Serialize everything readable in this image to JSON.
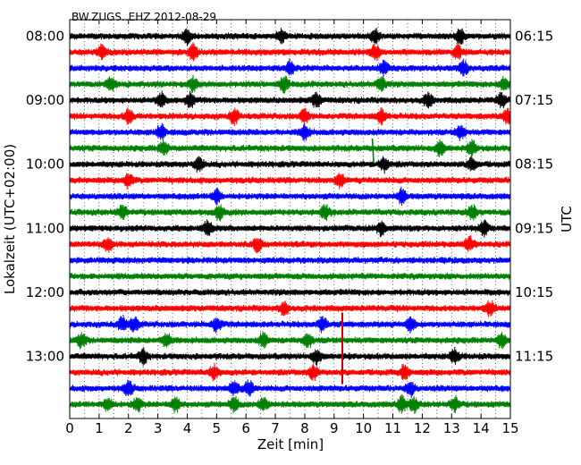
{
  "chart_data": {
    "type": "line",
    "title": "BW.ZUGS..EHZ 2012-08-29",
    "xlabel": "Zeit  [min]",
    "ylabel_left": "Lokalzeit (UTC+02:00)",
    "ylabel_right": "UTC",
    "xlim": [
      0,
      15
    ],
    "x_ticks": [
      "0",
      "1",
      "2",
      "3",
      "4",
      "5",
      "6",
      "7",
      "8",
      "9",
      "10",
      "11",
      "12",
      "13",
      "14",
      "15"
    ],
    "left_time_labels": [
      "08:00",
      "09:00",
      "10:00",
      "11:00",
      "12:00",
      "13:00"
    ],
    "right_time_labels": [
      "06:15",
      "07:15",
      "08:15",
      "09:15",
      "10:15",
      "11:15"
    ],
    "trace_count": 24,
    "traces_per_hour": 4,
    "trace_colors": [
      "#000000",
      "#ff0000",
      "#0000ff",
      "#008000"
    ],
    "grid": true,
    "grid_interval_min": 0.5,
    "events": [
      {
        "trace": 7,
        "minute": 10.3,
        "color": "#008000",
        "kind": "spike-up"
      },
      {
        "trace": 19,
        "minute": 9.28,
        "color": "#cc0000",
        "kind": "long-spike"
      }
    ],
    "bursts": [
      {
        "trace": 0,
        "minute": 4.0
      },
      {
        "trace": 0,
        "minute": 7.2
      },
      {
        "trace": 0,
        "minute": 10.4
      },
      {
        "trace": 0,
        "minute": 13.3
      },
      {
        "trace": 1,
        "minute": 1.1
      },
      {
        "trace": 1,
        "minute": 4.2
      },
      {
        "trace": 1,
        "minute": 10.4
      },
      {
        "trace": 1,
        "minute": 13.2
      },
      {
        "trace": 2,
        "minute": 7.5
      },
      {
        "trace": 2,
        "minute": 10.7
      },
      {
        "trace": 2,
        "minute": 13.4
      },
      {
        "trace": 3,
        "minute": 1.4
      },
      {
        "trace": 3,
        "minute": 4.2
      },
      {
        "trace": 3,
        "minute": 7.3
      },
      {
        "trace": 3,
        "minute": 10.6
      },
      {
        "trace": 3,
        "minute": 14.8
      },
      {
        "trace": 4,
        "minute": 3.1
      },
      {
        "trace": 4,
        "minute": 4.1
      },
      {
        "trace": 4,
        "minute": 8.4
      },
      {
        "trace": 4,
        "minute": 12.2
      },
      {
        "trace": 4,
        "minute": 14.7
      },
      {
        "trace": 5,
        "minute": 2.0
      },
      {
        "trace": 5,
        "minute": 5.6
      },
      {
        "trace": 5,
        "minute": 8.0
      },
      {
        "trace": 5,
        "minute": 10.6
      },
      {
        "trace": 5,
        "minute": 14.9
      },
      {
        "trace": 6,
        "minute": 3.1
      },
      {
        "trace": 6,
        "minute": 8.0
      },
      {
        "trace": 6,
        "minute": 13.3
      },
      {
        "trace": 7,
        "minute": 3.2
      },
      {
        "trace": 7,
        "minute": 12.6
      },
      {
        "trace": 7,
        "minute": 13.7
      },
      {
        "trace": 8,
        "minute": 4.4
      },
      {
        "trace": 8,
        "minute": 10.7
      },
      {
        "trace": 8,
        "minute": 13.7
      },
      {
        "trace": 9,
        "minute": 2.0
      },
      {
        "trace": 9,
        "minute": 9.2
      },
      {
        "trace": 10,
        "minute": 5.0
      },
      {
        "trace": 10,
        "minute": 11.3
      },
      {
        "trace": 11,
        "minute": 1.8
      },
      {
        "trace": 11,
        "minute": 5.1
      },
      {
        "trace": 11,
        "minute": 8.7
      },
      {
        "trace": 11,
        "minute": 13.7
      },
      {
        "trace": 12,
        "minute": 4.7
      },
      {
        "trace": 12,
        "minute": 10.6
      },
      {
        "trace": 12,
        "minute": 14.1
      },
      {
        "trace": 13,
        "minute": 1.3
      },
      {
        "trace": 13,
        "minute": 6.4
      },
      {
        "trace": 13,
        "minute": 13.6
      },
      {
        "trace": 17,
        "minute": 7.3
      },
      {
        "trace": 17,
        "minute": 14.3
      },
      {
        "trace": 18,
        "minute": 1.8
      },
      {
        "trace": 18,
        "minute": 2.2
      },
      {
        "trace": 18,
        "minute": 5.0
      },
      {
        "trace": 18,
        "minute": 8.6
      },
      {
        "trace": 18,
        "minute": 11.6
      },
      {
        "trace": 19,
        "minute": 0.4
      },
      {
        "trace": 19,
        "minute": 3.3
      },
      {
        "trace": 19,
        "minute": 6.6
      },
      {
        "trace": 19,
        "minute": 8.1
      },
      {
        "trace": 19,
        "minute": 14.7
      },
      {
        "trace": 20,
        "minute": 2.5
      },
      {
        "trace": 20,
        "minute": 8.4
      },
      {
        "trace": 20,
        "minute": 13.1
      },
      {
        "trace": 21,
        "minute": 4.9
      },
      {
        "trace": 21,
        "minute": 8.3
      },
      {
        "trace": 21,
        "minute": 11.4
      },
      {
        "trace": 22,
        "minute": 2.0
      },
      {
        "trace": 22,
        "minute": 5.6
      },
      {
        "trace": 22,
        "minute": 6.1
      },
      {
        "trace": 22,
        "minute": 11.6
      },
      {
        "trace": 23,
        "minute": 1.3
      },
      {
        "trace": 23,
        "minute": 2.3
      },
      {
        "trace": 23,
        "minute": 3.6
      },
      {
        "trace": 23,
        "minute": 5.6
      },
      {
        "trace": 23,
        "minute": 6.6
      },
      {
        "trace": 23,
        "minute": 11.3
      },
      {
        "trace": 23,
        "minute": 11.7
      },
      {
        "trace": 23,
        "minute": 13.1
      }
    ]
  }
}
